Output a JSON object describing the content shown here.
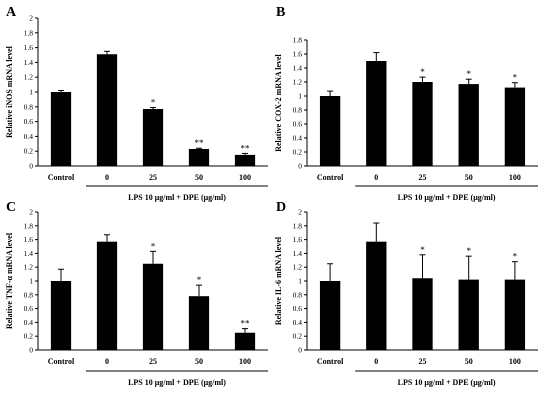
{
  "chart_data": [
    {
      "panel": "A",
      "type": "bar",
      "ylabel": "Relative iNOS mRNA level",
      "xlabel": "LPS 10 μg/ml + DPE (μg/ml)",
      "categories": [
        "Control",
        "0",
        "25",
        "50",
        "100"
      ],
      "values": [
        1.0,
        1.51,
        0.77,
        0.23,
        0.15
      ],
      "errors": [
        0.02,
        0.04,
        0.02,
        0.01,
        0.02
      ],
      "significance": [
        "",
        "",
        "*",
        "**",
        "**"
      ],
      "ylim": [
        0,
        2
      ],
      "yticks": [
        "0",
        "0.2",
        "0.4",
        "0.6",
        "0.8",
        "1",
        "1.2",
        "1.4",
        "1.6",
        "1.8",
        "2"
      ],
      "colors": {
        "bar": "#000000"
      }
    },
    {
      "panel": "B",
      "type": "bar",
      "ylabel": "Relative COX-2 mRNA level",
      "xlabel": "LPS 10 μg/ml + DPE (μg/ml)",
      "categories": [
        "Control",
        "0",
        "25",
        "50",
        "100"
      ],
      "values": [
        1.0,
        1.5,
        1.2,
        1.17,
        1.12
      ],
      "errors": [
        0.07,
        0.12,
        0.07,
        0.07,
        0.07
      ],
      "significance": [
        "",
        "",
        "*",
        "*",
        "*"
      ],
      "ylim": [
        0,
        1.8
      ],
      "yticks": [
        "0",
        "0.2",
        "0.4",
        "0.6",
        "0.8",
        "1",
        "1.2",
        "1.4",
        "1.6",
        "1.8"
      ],
      "colors": {
        "bar": "#000000"
      }
    },
    {
      "panel": "C",
      "type": "bar",
      "ylabel": "Relative TNF-α mRNA level",
      "xlabel": "LPS 10 μg/ml + DPE (μg/ml)",
      "categories": [
        "Control",
        "0",
        "25",
        "50",
        "100"
      ],
      "values": [
        1.0,
        1.57,
        1.25,
        0.78,
        0.25
      ],
      "errors": [
        0.17,
        0.1,
        0.18,
        0.16,
        0.06
      ],
      "significance": [
        "",
        "",
        "*",
        "*",
        "**"
      ],
      "ylim": [
        0,
        2
      ],
      "yticks": [
        "0",
        "0.2",
        "0.4",
        "0.6",
        "0.8",
        "1",
        "1.2",
        "1.4",
        "1.6",
        "1.8",
        "2"
      ],
      "colors": {
        "bar": "#000000"
      }
    },
    {
      "panel": "D",
      "type": "bar",
      "ylabel": "Relative IL-6 mRNA level",
      "xlabel": "LPS 10 μg/ml + DPE (μg/ml)",
      "categories": [
        "Control",
        "0",
        "25",
        "50",
        "100"
      ],
      "values": [
        1.0,
        1.57,
        1.04,
        1.02,
        1.02
      ],
      "errors": [
        0.25,
        0.27,
        0.34,
        0.34,
        0.26
      ],
      "significance": [
        "",
        "",
        "*",
        "*",
        "*"
      ],
      "ylim": [
        0,
        2
      ],
      "yticks": [
        "0",
        "0.2",
        "0.4",
        "0.6",
        "0.8",
        "1",
        "1.2",
        "1.4",
        "1.6",
        "1.8",
        "2"
      ],
      "colors": {
        "bar": "#000000"
      }
    }
  ]
}
